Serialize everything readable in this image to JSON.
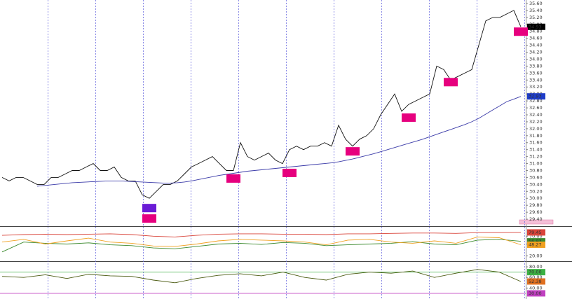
{
  "chart_data": [
    {
      "type": "line",
      "ylim": [
        29.22,
        35.66
      ],
      "yticks": [
        {
          "value": 29.4,
          "label": "29.40"
        },
        {
          "value": 29.6,
          "label": "29.60"
        },
        {
          "value": 29.8,
          "label": "29.80"
        },
        {
          "value": 30.0,
          "label": "30.00"
        },
        {
          "value": 30.2,
          "label": "30.20"
        },
        {
          "value": 30.4,
          "label": "30.40"
        },
        {
          "value": 30.6,
          "label": "30.60"
        },
        {
          "value": 30.8,
          "label": "30.80"
        },
        {
          "value": 31.0,
          "label": "31.00"
        },
        {
          "value": 31.2,
          "label": "31.20"
        },
        {
          "value": 31.4,
          "label": "31.40"
        },
        {
          "value": 31.6,
          "label": "31.60"
        },
        {
          "value": 31.8,
          "label": "31.80"
        },
        {
          "value": 32.0,
          "label": "32.00"
        },
        {
          "value": 32.2,
          "label": "32.20"
        },
        {
          "value": 32.4,
          "label": "32.40"
        },
        {
          "value": 32.6,
          "label": "32.60"
        },
        {
          "value": 32.8,
          "label": "32.80"
        },
        {
          "value": 33.0,
          "label": "33.00"
        },
        {
          "value": 33.2,
          "label": "33.20"
        },
        {
          "value": 33.4,
          "label": "33.40"
        },
        {
          "value": 33.6,
          "label": "33.60"
        },
        {
          "value": 33.8,
          "label": "33.80"
        },
        {
          "value": 34.0,
          "label": "34.00"
        },
        {
          "value": 34.2,
          "label": "34.20"
        },
        {
          "value": 34.4,
          "label": "34.40"
        },
        {
          "value": 34.6,
          "label": "34.60"
        },
        {
          "value": 34.8,
          "label": "34.80"
        },
        {
          "value": 35.0,
          "label": "35.00"
        },
        {
          "value": 35.2,
          "label": "35.20"
        },
        {
          "value": 35.4,
          "label": "35.40"
        },
        {
          "value": 35.6,
          "label": "35.60"
        }
      ],
      "series": [
        {
          "color": "#111111",
          "badge": "#000000",
          "values": [
            30.6,
            30.5,
            30.6,
            30.6,
            30.5,
            30.4,
            30.4,
            30.6,
            30.6,
            30.7,
            30.8,
            30.8,
            30.9,
            31.0,
            30.8,
            30.8,
            30.9,
            30.6,
            30.5,
            30.5,
            30.1,
            30.0,
            30.2,
            30.4,
            30.4,
            30.5,
            30.7,
            30.9,
            31.0,
            31.1,
            31.2,
            31.0,
            30.8,
            30.8,
            31.6,
            31.2,
            31.1,
            31.2,
            31.3,
            31.1,
            31.0,
            31.4,
            31.5,
            31.4,
            31.5,
            31.5,
            31.6,
            31.5,
            32.1,
            31.7,
            31.5,
            31.7,
            31.8,
            32.0,
            32.4,
            32.7,
            33.0,
            32.5,
            32.7,
            32.8,
            32.9,
            33.0,
            33.8,
            33.7,
            33.4,
            33.5,
            33.6,
            33.7,
            34.4,
            35.1,
            35.2,
            35.2,
            35.3,
            35.4,
            34.93
          ]
        },
        {
          "color": "#3a3aa8",
          "badge": "#1e3cc8",
          "values": [
            null,
            null,
            null,
            null,
            null,
            30.35,
            30.37,
            30.39,
            30.41,
            30.43,
            30.45,
            30.46,
            30.47,
            30.48,
            30.49,
            30.5,
            30.5,
            30.5,
            30.49,
            30.48,
            30.47,
            30.46,
            30.45,
            30.44,
            30.44,
            30.45,
            30.47,
            30.5,
            30.54,
            30.58,
            30.62,
            30.66,
            30.69,
            30.72,
            30.75,
            30.78,
            30.8,
            30.82,
            30.84,
            30.86,
            30.88,
            30.9,
            30.92,
            30.94,
            30.96,
            30.98,
            31.0,
            31.02,
            31.05,
            31.09,
            31.13,
            31.18,
            31.23,
            31.28,
            31.34,
            31.4,
            31.46,
            31.52,
            31.58,
            31.64,
            31.7,
            31.77,
            31.84,
            31.91,
            31.98,
            32.05,
            32.12,
            32.2,
            32.3,
            32.42,
            32.54,
            32.66,
            32.78,
            32.85,
            32.93
          ]
        }
      ],
      "markers": [
        {
          "index": 21,
          "value": 29.72,
          "color": "#6a1bd6"
        },
        {
          "index": 21,
          "value": 29.42,
          "color": "#e6007e"
        },
        {
          "index": 33,
          "value": 30.57,
          "color": "#e6007e"
        },
        {
          "index": 41,
          "value": 30.73,
          "color": "#e6007e"
        },
        {
          "index": 50,
          "value": 31.35,
          "color": "#e6007e"
        },
        {
          "index": 58,
          "value": 32.32,
          "color": "#e6007e"
        },
        {
          "index": 64,
          "value": 33.34,
          "color": "#e6007e"
        },
        {
          "index": 74,
          "value": 34.79,
          "color": "#e6007e"
        }
      ]
    },
    {
      "type": "line",
      "ylim": [
        10,
        90
      ],
      "yticks": [
        {
          "value": 20,
          "label": "20.00"
        },
        {
          "value": 50,
          "label": "50.00"
        },
        {
          "value": 70,
          "label": "70.00"
        }
      ],
      "series": [
        {
          "color": "#d9443a",
          "badge": "#d9443a",
          "values": [
            72,
            74,
            75,
            74,
            75,
            76,
            74,
            70,
            68,
            72,
            75,
            76,
            76,
            75,
            75,
            74,
            76,
            76,
            77,
            78,
            78,
            77,
            79,
            79,
            79.45
          ]
        },
        {
          "color": "#3c8a2e",
          "badge": "#3c8a2e",
          "values": [
            30,
            55,
            52,
            50,
            53,
            48,
            46,
            40,
            38,
            44,
            50,
            52,
            49,
            54,
            52,
            46,
            48,
            50,
            52,
            56,
            50,
            48,
            60,
            62,
            56.93
          ]
        },
        {
          "color": "#f0a020",
          "badge": "#f0a020",
          "values": [
            55,
            62,
            50,
            58,
            65,
            55,
            52,
            45,
            44,
            50,
            58,
            62,
            60,
            58,
            55,
            48,
            60,
            62,
            55,
            52,
            58,
            52,
            68,
            66,
            48.27
          ]
        }
      ]
    },
    {
      "type": "line",
      "ylim": [
        22,
        88
      ],
      "yticks": [
        {
          "value": 40,
          "label": "40.00"
        },
        {
          "value": 60,
          "label": "60.00"
        },
        {
          "value": 80,
          "label": "80.00"
        }
      ],
      "levels": [
        {
          "value": 70,
          "label": "70.00",
          "color": "#3cb043"
        },
        {
          "value": 30,
          "label": "30.00",
          "color": "#c040c0"
        }
      ],
      "series": [
        {
          "color": "#4a5a10",
          "badge": "#e07020",
          "values": [
            62,
            60,
            65,
            58,
            66,
            63,
            62,
            55,
            50,
            58,
            64,
            67,
            63,
            70,
            60,
            55,
            66,
            70,
            68,
            72,
            60,
            68,
            75,
            70,
            52.38
          ]
        }
      ]
    }
  ]
}
